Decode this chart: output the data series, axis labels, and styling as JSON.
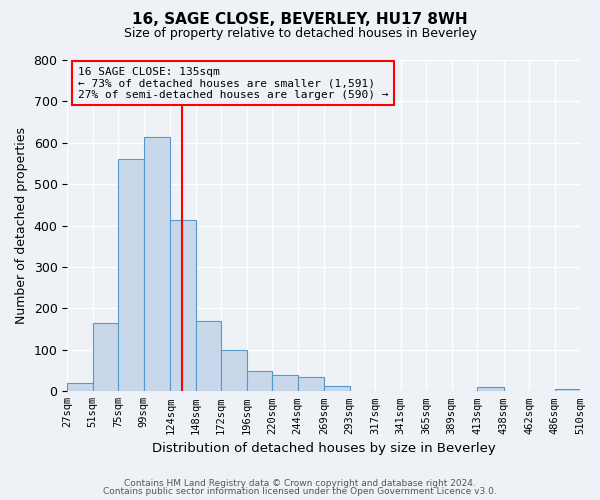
{
  "title": "16, SAGE CLOSE, BEVERLEY, HU17 8WH",
  "subtitle": "Size of property relative to detached houses in Beverley",
  "xlabel": "Distribution of detached houses by size in Beverley",
  "ylabel": "Number of detached properties",
  "bar_values": [
    20,
    165,
    560,
    615,
    413,
    170,
    100,
    50,
    40,
    34,
    12,
    0,
    0,
    0,
    0,
    0,
    10,
    0,
    0,
    5
  ],
  "bin_edges": [
    27,
    51,
    75,
    99,
    124,
    148,
    172,
    196,
    220,
    244,
    269,
    293,
    317,
    341,
    365,
    389,
    413,
    438,
    462,
    486,
    510
  ],
  "tick_labels": [
    "27sqm",
    "51sqm",
    "75sqm",
    "99sqm",
    "124sqm",
    "148sqm",
    "172sqm",
    "196sqm",
    "220sqm",
    "244sqm",
    "269sqm",
    "293sqm",
    "317sqm",
    "341sqm",
    "365sqm",
    "389sqm",
    "413sqm",
    "438sqm",
    "462sqm",
    "486sqm",
    "510sqm"
  ],
  "bar_color": "#c8d8ea",
  "bar_edge_color": "#5599cc",
  "ylim": [
    0,
    800
  ],
  "yticks": [
    0,
    100,
    200,
    300,
    400,
    500,
    600,
    700,
    800
  ],
  "vline_x": 135,
  "annotation_title": "16 SAGE CLOSE: 135sqm",
  "annotation_line1": "← 73% of detached houses are smaller (1,591)",
  "annotation_line2": "27% of semi-detached houses are larger (590) →",
  "footer1": "Contains HM Land Registry data © Crown copyright and database right 2024.",
  "footer2": "Contains public sector information licensed under the Open Government Licence v3.0.",
  "bg_color": "#eef2f6",
  "grid_color": "#ffffff"
}
